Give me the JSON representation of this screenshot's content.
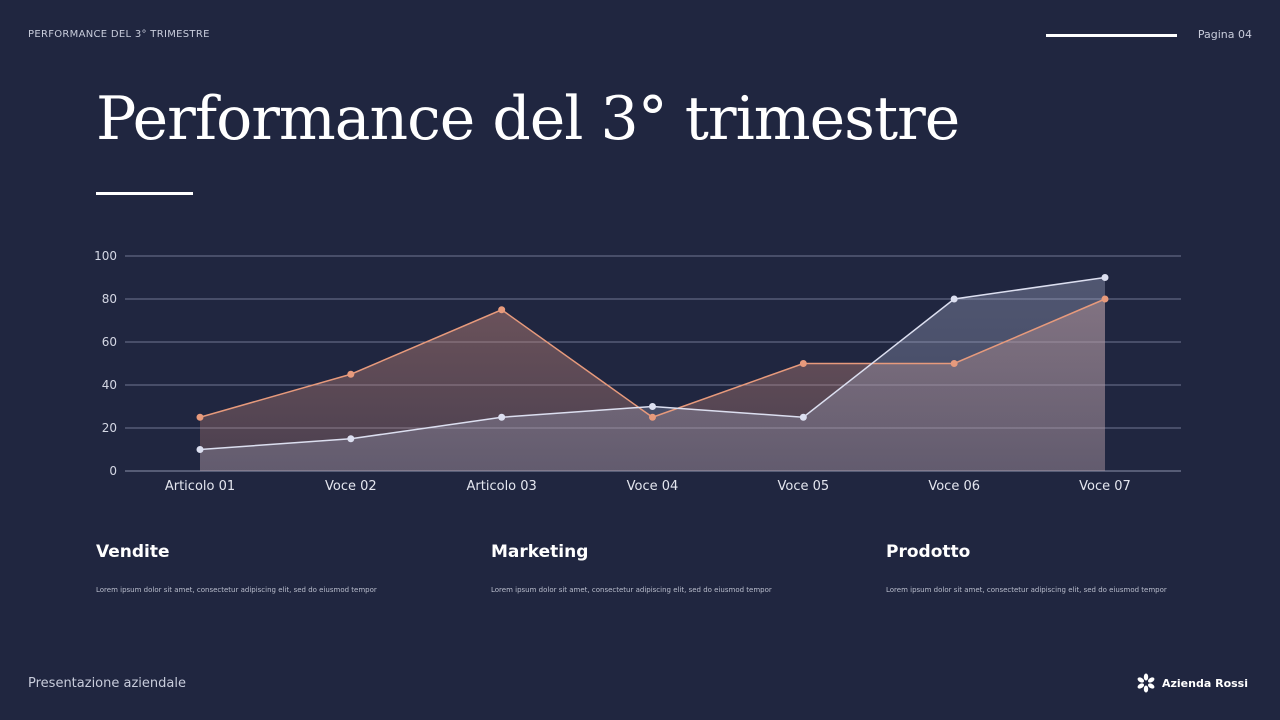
{
  "header": {
    "label": "PERFORMANCE DEL 3° TRIMESTRE",
    "page": "Pagina 04"
  },
  "title": "Performance del 3° trimestre",
  "chart_data": {
    "type": "area",
    "categories": [
      "Articolo 01",
      "Voce 02",
      "Articolo 03",
      "Voce 04",
      "Voce 05",
      "Voce 06",
      "Voce 07"
    ],
    "series": [
      {
        "values": [
          25,
          45,
          75,
          25,
          50,
          50,
          80
        ],
        "color": "#e79a7c"
      },
      {
        "values": [
          10,
          15,
          25,
          30,
          25,
          80,
          90
        ],
        "color": "#dcdff0"
      }
    ],
    "ylim": [
      0,
      100
    ],
    "yticks": [
      0,
      20,
      40,
      60,
      80,
      100
    ],
    "grid": true
  },
  "sections": [
    {
      "title": "Vendite",
      "text": "Lorem ipsum dolor sit amet, consectetur adipiscing elit, sed do eiusmod tempor"
    },
    {
      "title": "Marketing",
      "text": "Lorem ipsum dolor sit amet, consectetur adipiscing elit, sed do eiusmod tempor"
    },
    {
      "title": "Prodotto",
      "text": "Lorem ipsum dolor sit amet, consectetur adipiscing elit, sed do eiusmod tempor"
    }
  ],
  "footer": {
    "label": "Presentazione aziendale",
    "brand": "Azienda Rossi",
    "brand_icon": "asterisk-flower-icon"
  }
}
